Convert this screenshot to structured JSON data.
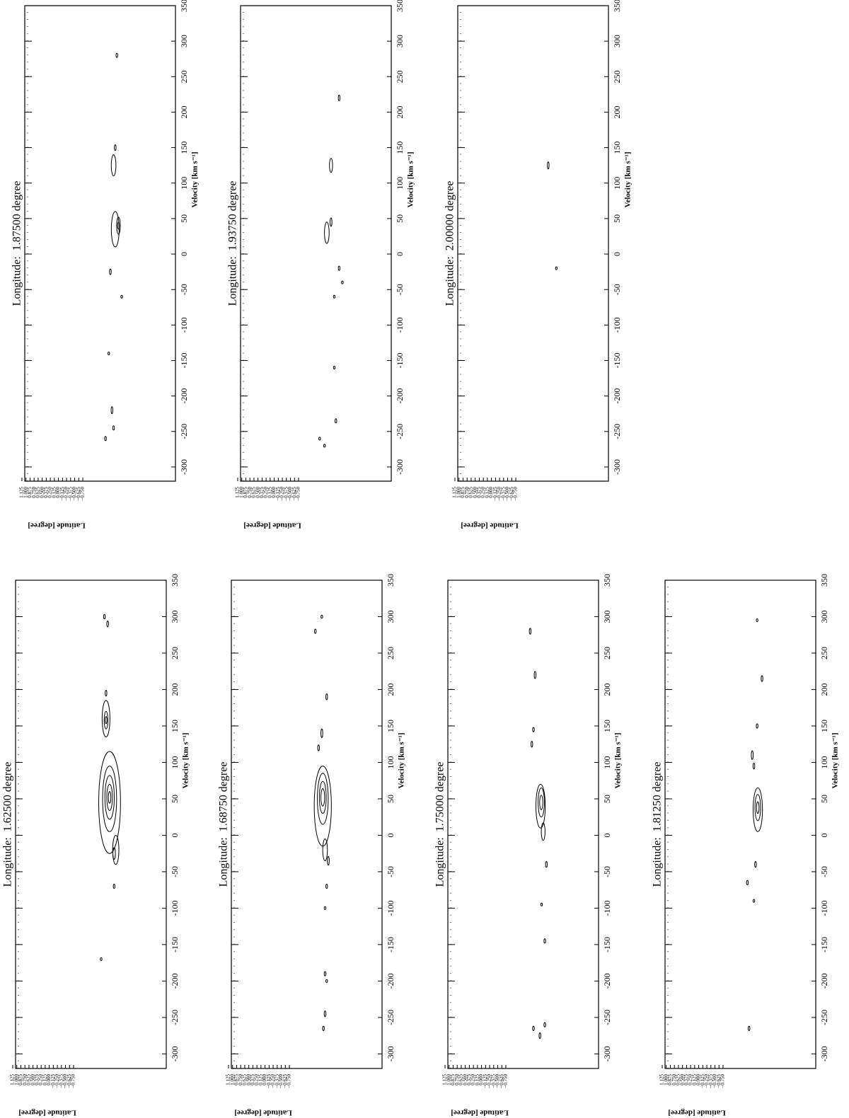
{
  "chart_data": [
    {
      "type": "contour",
      "title": "Longitude:  1.62500 degree",
      "xlabel": "Velocity [km s⁻¹]",
      "ylabel": "Latitude [degree]",
      "xlim": [
        -320,
        350
      ],
      "ylim": [
        -0.75,
        1.125
      ],
      "xticks": [
        -300,
        -250,
        -200,
        -150,
        -100,
        -50,
        0,
        50,
        100,
        150,
        200,
        250,
        300,
        350
      ],
      "yticks": [
        {
          "value": 1.125,
          "label": "1.125"
        },
        {
          "value": 1.0,
          "label": "1.000"
        },
        {
          "value": 0.875,
          "label": "0.875"
        },
        {
          "value": 0.75,
          "label": "0.750"
        },
        {
          "value": 0.625,
          "label": "0.625"
        },
        {
          "value": 0.5,
          "label": "0.500"
        },
        {
          "value": 0.375,
          "label": "0.375"
        },
        {
          "value": 0.25,
          "label": "0.250"
        },
        {
          "value": 0.125,
          "label": "0.125"
        },
        {
          "value": 0.0,
          "label": "0.000"
        },
        {
          "value": -0.125,
          "label": "−0.125"
        },
        {
          "value": -0.25,
          "label": "−0.250"
        },
        {
          "value": -0.375,
          "label": "−0.375"
        },
        {
          "value": -0.5,
          "label": "−0.500"
        },
        {
          "value": -0.625,
          "label": "−0.625"
        },
        {
          "value": -0.75,
          "label": "−0.750"
        }
      ],
      "features": {
        "velocity": [
          45,
          50,
          52,
          52,
          52,
          -20,
          -25,
          160,
          158,
          158,
          195,
          290,
          300,
          -70,
          -170
        ],
        "latitude": [
          -1.86,
          -1.86,
          -1.86,
          -1.86,
          -1.86,
          -2.05,
          -2.0,
          -1.75,
          -1.75,
          -1.75,
          -1.75,
          -1.8,
          -1.7,
          -2.0,
          -1.6
        ],
        "extent": [
          70,
          45,
          30,
          18,
          8,
          20,
          8,
          25,
          12,
          5,
          4,
          4,
          3,
          3,
          2
        ]
      }
    },
    {
      "type": "contour",
      "title": "Longitude:  1.68750 degree",
      "xlabel": "Velocity [km s⁻¹]",
      "ylabel": "Latitude [degree]",
      "xlim": [
        -320,
        350
      ],
      "ylim": [
        -0.75,
        1.125
      ],
      "xticks": [
        -300,
        -250,
        -200,
        -150,
        -100,
        -50,
        0,
        50,
        100,
        150,
        200,
        250,
        300,
        350
      ],
      "yticks": [
        {
          "value": 1.125,
          "label": "1.125"
        },
        {
          "value": 1.0,
          "label": "1.000"
        },
        {
          "value": 0.875,
          "label": "0.875"
        },
        {
          "value": 0.75,
          "label": "0.750"
        },
        {
          "value": 0.625,
          "label": "0.625"
        },
        {
          "value": 0.5,
          "label": "0.500"
        },
        {
          "value": 0.375,
          "label": "0.375"
        },
        {
          "value": 0.25,
          "label": "0.250"
        },
        {
          "value": 0.125,
          "label": "0.125"
        },
        {
          "value": 0.0,
          "label": "0.000"
        },
        {
          "value": -0.125,
          "label": "−0.125"
        },
        {
          "value": -0.25,
          "label": "−0.250"
        },
        {
          "value": -0.375,
          "label": "−0.375"
        },
        {
          "value": -0.5,
          "label": "−0.500"
        },
        {
          "value": -0.625,
          "label": "−0.625"
        },
        {
          "value": -0.75,
          "label": "−0.750"
        }
      ],
      "features": {
        "velocity": [
          40,
          50,
          52,
          52,
          -20,
          -35,
          140,
          190,
          120,
          -70,
          -100,
          -190,
          -200,
          -245,
          -265,
          280,
          300
        ],
        "latitude": [
          -1.78,
          -1.78,
          -1.78,
          -1.78,
          -1.85,
          -1.95,
          -1.75,
          -1.9,
          -1.65,
          -1.9,
          -1.85,
          -1.85,
          -1.9,
          -1.85,
          -1.8,
          -1.55,
          -1.75
        ],
        "extent": [
          55,
          35,
          22,
          12,
          15,
          6,
          6,
          4,
          4,
          3,
          2,
          3,
          2,
          4,
          3,
          3,
          2
        ]
      }
    },
    {
      "type": "contour",
      "title": "Longitude:  1.75000 degree",
      "xlabel": "Velocity [km s⁻¹]",
      "ylabel": "Latitude [degree]",
      "xlim": [
        -320,
        350
      ],
      "ylim": [
        -0.75,
        1.125
      ],
      "xticks": [
        -300,
        -250,
        -200,
        -150,
        -100,
        -50,
        0,
        50,
        100,
        150,
        200,
        250,
        300,
        350
      ],
      "yticks": [
        {
          "value": 1.125,
          "label": "1.125"
        },
        {
          "value": 1.0,
          "label": "1.000"
        },
        {
          "value": 0.875,
          "label": "0.875"
        },
        {
          "value": 0.75,
          "label": "0.750"
        },
        {
          "value": 0.625,
          "label": "0.625"
        },
        {
          "value": 0.5,
          "label": "0.500"
        },
        {
          "value": 0.375,
          "label": "0.375"
        },
        {
          "value": 0.25,
          "label": "0.250"
        },
        {
          "value": 0.125,
          "label": "0.125"
        },
        {
          "value": 0.0,
          "label": "0.000"
        },
        {
          "value": -0.125,
          "label": "−0.125"
        },
        {
          "value": -0.25,
          "label": "−0.250"
        },
        {
          "value": -0.375,
          "label": "−0.375"
        },
        {
          "value": -0.5,
          "label": "−0.500"
        },
        {
          "value": -0.625,
          "label": "−0.625"
        },
        {
          "value": -0.75,
          "label": "−0.750"
        }
      ],
      "features": {
        "velocity": [
          40,
          45,
          45,
          5,
          220,
          280,
          145,
          125,
          -40,
          -95,
          -145,
          -260,
          -275,
          -265
        ],
        "latitude": [
          -1.82,
          -1.84,
          -1.84,
          -1.9,
          -1.65,
          -1.5,
          -1.6,
          -1.55,
          -2.0,
          -1.85,
          -1.95,
          -1.95,
          -1.8,
          -1.6
        ],
        "extent": [
          30,
          20,
          10,
          12,
          5,
          4,
          3,
          4,
          4,
          2,
          3,
          3,
          4,
          3
        ]
      }
    },
    {
      "type": "contour",
      "title": "Longitude:  1.81250 degree",
      "xlabel": "Velocity [km s⁻¹]",
      "ylabel": "Latitude [degree]",
      "xlim": [
        -320,
        350
      ],
      "ylim": [
        -0.75,
        1.125
      ],
      "xticks": [
        -300,
        -250,
        -200,
        -150,
        -100,
        -50,
        0,
        50,
        100,
        150,
        200,
        250,
        300,
        350
      ],
      "yticks": [
        {
          "value": 1.125,
          "label": "1.125"
        },
        {
          "value": 1.0,
          "label": "1.000"
        },
        {
          "value": 0.875,
          "label": "0.875"
        },
        {
          "value": 0.75,
          "label": "0.750"
        },
        {
          "value": 0.625,
          "label": "0.625"
        },
        {
          "value": 0.5,
          "label": "0.500"
        },
        {
          "value": 0.375,
          "label": "0.375"
        },
        {
          "value": 0.25,
          "label": "0.250"
        },
        {
          "value": 0.125,
          "label": "0.125"
        },
        {
          "value": 0.0,
          "label": "0.000"
        },
        {
          "value": -0.125,
          "label": "−0.125"
        },
        {
          "value": -0.25,
          "label": "−0.250"
        },
        {
          "value": -0.375,
          "label": "−0.375"
        },
        {
          "value": -0.5,
          "label": "−0.500"
        },
        {
          "value": -0.625,
          "label": "−0.625"
        },
        {
          "value": -0.75,
          "label": "−0.750"
        }
      ],
      "features": {
        "velocity": [
          35,
          38,
          38,
          110,
          95,
          150,
          215,
          -40,
          -65,
          -90,
          -265,
          295
        ],
        "latitude": [
          -1.82,
          -1.82,
          -1.82,
          -1.65,
          -1.7,
          -1.8,
          -1.95,
          -1.75,
          -1.5,
          -1.7,
          -1.55,
          -1.8
        ],
        "extent": [
          30,
          18,
          8,
          6,
          4,
          3,
          4,
          4,
          3,
          2,
          3,
          2
        ]
      }
    },
    {
      "type": "contour",
      "title": "Longitude:  1.87500 degree",
      "xlabel": "Velocity [km s⁻¹]",
      "ylabel": "Latitude [degree]",
      "xlim": [
        -320,
        350
      ],
      "ylim": [
        -0.75,
        1.125
      ],
      "xticks": [
        -300,
        -250,
        -200,
        -150,
        -100,
        -50,
        0,
        50,
        100,
        150,
        200,
        250,
        300,
        350
      ],
      "yticks": [
        {
          "value": 1.125,
          "label": "1.125"
        },
        {
          "value": 1.0,
          "label": "1.000"
        },
        {
          "value": 0.875,
          "label": "0.875"
        },
        {
          "value": 0.75,
          "label": "0.750"
        },
        {
          "value": 0.625,
          "label": "0.625"
        },
        {
          "value": 0.5,
          "label": "0.500"
        },
        {
          "value": 0.375,
          "label": "0.375"
        },
        {
          "value": 0.25,
          "label": "0.250"
        },
        {
          "value": 0.125,
          "label": "0.125"
        },
        {
          "value": 0.0,
          "label": "0.000"
        },
        {
          "value": -0.125,
          "label": "−0.125"
        },
        {
          "value": -0.25,
          "label": "−0.250"
        },
        {
          "value": -0.375,
          "label": "−0.375"
        },
        {
          "value": -0.5,
          "label": "−0.500"
        },
        {
          "value": -0.625,
          "label": "−0.625"
        },
        {
          "value": -0.75,
          "label": "−0.750"
        }
      ],
      "features": {
        "velocity": [
          35,
          40,
          40,
          125,
          150,
          -25,
          -60,
          -140,
          -220,
          -245,
          -260,
          280
        ],
        "latitude": [
          -1.75,
          -1.85,
          -1.85,
          -1.7,
          -1.75,
          -1.6,
          -1.95,
          -1.55,
          -1.65,
          -1.7,
          -1.45,
          -1.8
        ],
        "extent": [
          25,
          12,
          5,
          15,
          4,
          4,
          2,
          2,
          5,
          3,
          3,
          3
        ]
      }
    },
    {
      "type": "contour",
      "title": "Longitude:  1.93750 degree",
      "xlabel": "Velocity [km s⁻¹]",
      "ylabel": "Latitude [degree]",
      "xlim": [
        -320,
        350
      ],
      "ylim": [
        -0.75,
        1.125
      ],
      "xticks": [
        -300,
        -250,
        -200,
        -150,
        -100,
        -50,
        0,
        50,
        100,
        150,
        200,
        250,
        300,
        350
      ],
      "yticks": [
        {
          "value": 1.125,
          "label": "1.125"
        },
        {
          "value": 1.0,
          "label": "1.000"
        },
        {
          "value": 0.875,
          "label": "0.875"
        },
        {
          "value": 0.75,
          "label": "0.750"
        },
        {
          "value": 0.625,
          "label": "0.625"
        },
        {
          "value": 0.5,
          "label": "0.500"
        },
        {
          "value": 0.375,
          "label": "0.375"
        },
        {
          "value": 0.25,
          "label": "0.250"
        },
        {
          "value": 0.125,
          "label": "0.125"
        },
        {
          "value": 0.0,
          "label": "0.000"
        },
        {
          "value": -0.125,
          "label": "−0.125"
        },
        {
          "value": -0.25,
          "label": "−0.250"
        },
        {
          "value": -0.375,
          "label": "−0.375"
        },
        {
          "value": -0.5,
          "label": "−0.500"
        },
        {
          "value": -0.625,
          "label": "−0.625"
        },
        {
          "value": -0.75,
          "label": "−0.750"
        }
      ],
      "features": {
        "velocity": [
          30,
          45,
          125,
          220,
          -20,
          -40,
          -60,
          -160,
          -235,
          -260,
          -270
        ],
        "latitude": [
          -1.62,
          -1.75,
          -1.75,
          -2.0,
          -2.0,
          -2.1,
          -1.85,
          -1.85,
          -1.9,
          -1.4,
          -1.55
        ],
        "extent": [
          15,
          6,
          10,
          4,
          3,
          2,
          2,
          2,
          3,
          2,
          2
        ]
      }
    },
    {
      "type": "contour",
      "title": "Longitude:  2.00000 degree",
      "xlabel": "Velocity [km s⁻¹]",
      "ylabel": "Latitude [degree]",
      "xlim": [
        -320,
        350
      ],
      "ylim": [
        -0.75,
        1.125
      ],
      "xticks": [
        -300,
        -250,
        -200,
        -150,
        -100,
        -50,
        0,
        50,
        100,
        150,
        200,
        250,
        300,
        350
      ],
      "yticks": [
        {
          "value": 1.125,
          "label": "1.125"
        },
        {
          "value": 1.0,
          "label": "1.000"
        },
        {
          "value": 0.875,
          "label": "0.875"
        },
        {
          "value": 0.75,
          "label": "0.750"
        },
        {
          "value": 0.625,
          "label": "0.625"
        },
        {
          "value": 0.5,
          "label": "0.500"
        },
        {
          "value": 0.375,
          "label": "0.375"
        },
        {
          "value": 0.25,
          "label": "0.250"
        },
        {
          "value": 0.125,
          "label": "0.125"
        },
        {
          "value": 0.0,
          "label": "0.000"
        },
        {
          "value": -0.125,
          "label": "−0.125"
        },
        {
          "value": -0.25,
          "label": "−0.250"
        },
        {
          "value": -0.375,
          "label": "−0.375"
        },
        {
          "value": -0.5,
          "label": "−0.500"
        },
        {
          "value": -0.625,
          "label": "−0.625"
        },
        {
          "value": -0.75,
          "label": "−0.750"
        }
      ],
      "features": {
        "velocity": [
          125,
          -20
        ],
        "latitude": [
          -1.75,
          -2.0
        ],
        "extent": [
          5,
          2
        ]
      }
    }
  ]
}
